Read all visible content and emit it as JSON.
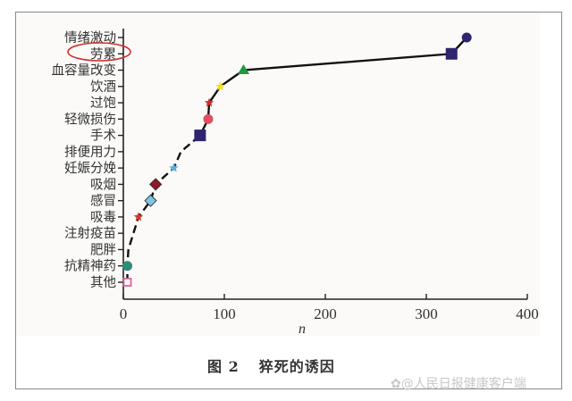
{
  "figure": {
    "caption_number": "图 2",
    "caption_text": "猝死的诱因",
    "watermark": "@人民日报健康客户端",
    "highlight_annotation": "劳累"
  },
  "chart_data": {
    "type": "line",
    "title": "猝死的诱因",
    "xlabel": "n",
    "ylabel": "",
    "xlim": [
      0,
      400
    ],
    "x_ticks": [
      0,
      100,
      200,
      300,
      400
    ],
    "grid": false,
    "legend": "none",
    "categories": [
      "其他",
      "抗精神药",
      "肥胖",
      "注射疫苗",
      "吸毒",
      "感冒",
      "吸烟",
      "妊娠分娩",
      "排便用力",
      "手术",
      "轻微损伤",
      "过饱",
      "饮酒",
      "血容量改变",
      "劳累",
      "情绪激动"
    ],
    "values": [
      4,
      4,
      5,
      10,
      15,
      27,
      32,
      50,
      57,
      76,
      84,
      85,
      96,
      119,
      325,
      340
    ],
    "markers": [
      {
        "category": "其他",
        "shape": "open-square",
        "color": "#e0609a"
      },
      {
        "category": "抗精神药",
        "shape": "circle",
        "color": "#2e8b7a"
      },
      {
        "category": "肥胖",
        "shape": "none",
        "color": "#000000"
      },
      {
        "category": "注射疫苗",
        "shape": "none",
        "color": "#000000"
      },
      {
        "category": "吸毒",
        "shape": "star",
        "color": "#d23a2a"
      },
      {
        "category": "感冒",
        "shape": "diamond",
        "color": "#7fc4e0"
      },
      {
        "category": "吸烟",
        "shape": "diamond",
        "color": "#8b1a2a"
      },
      {
        "category": "妊娠分娩",
        "shape": "star",
        "color": "#5fb0d0"
      },
      {
        "category": "排便用力",
        "shape": "none",
        "color": "#000000"
      },
      {
        "category": "手术",
        "shape": "square",
        "color": "#2e2470"
      },
      {
        "category": "轻微损伤",
        "shape": "circle",
        "color": "#e05060"
      },
      {
        "category": "过饱",
        "shape": "star",
        "color": "#d42a2a"
      },
      {
        "category": "饮酒",
        "shape": "star",
        "color": "#f0e020"
      },
      {
        "category": "血容量改变",
        "shape": "triangle",
        "color": "#1e9a40"
      },
      {
        "category": "劳累",
        "shape": "square",
        "color": "#2e2470"
      },
      {
        "category": "情绪激动",
        "shape": "circle",
        "color": "#2e2470"
      }
    ]
  }
}
